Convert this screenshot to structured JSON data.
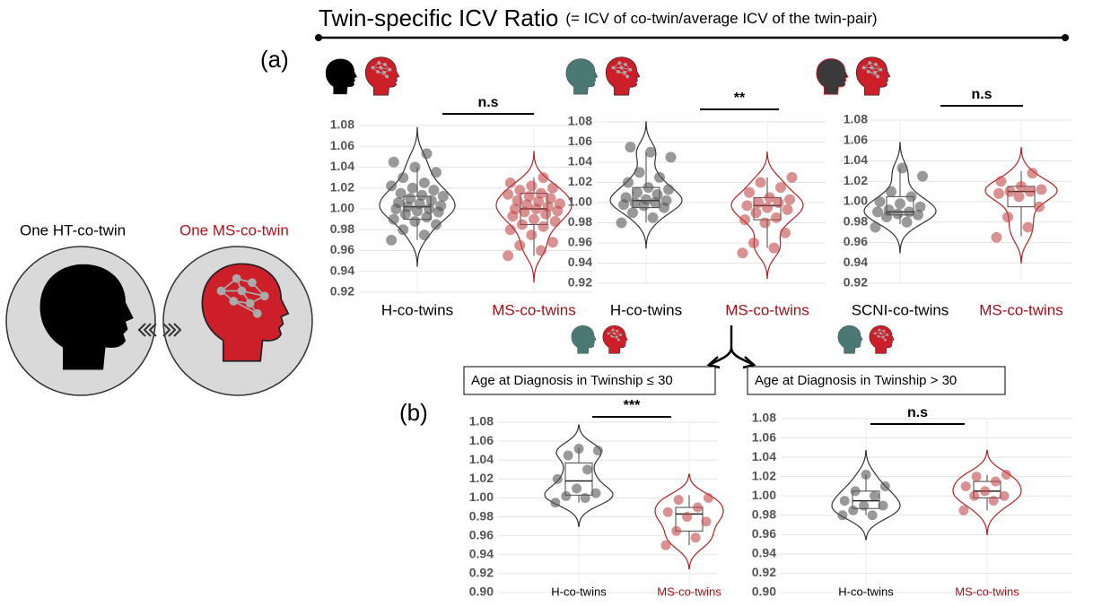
{
  "header": {
    "title": "Twin-specific ICV Ratio",
    "title_note": "(= ICV of co-twin/average ICV of the twin-pair)"
  },
  "left": {
    "healthy_label": "One HT-co-twin",
    "ms_label": "One MS-co-twin"
  },
  "panels": {
    "a": "(a)",
    "b": "(b)",
    "subgroups": [
      "Age at Diagnosis in Twinship ≤ 30",
      "Age at Diagnosis in Twinship > 30"
    ]
  },
  "chart_data": [
    {
      "type": "violin",
      "significance": "n.s",
      "ylim": [
        0.92,
        1.08
      ],
      "yticks": [
        0.92,
        0.94,
        0.96,
        0.98,
        {
          "value": 1,
          "label": "1.00"
        },
        1.02,
        1.04,
        1.06,
        1.08
      ],
      "series": [
        {
          "name": "H-co-twins",
          "color": "#333333",
          "values": [
            0.97,
            0.975,
            0.98,
            0.985,
            0.988,
            0.99,
            0.992,
            0.995,
            0.997,
            0.998,
            1.0,
            1.0,
            1.002,
            1.003,
            1.005,
            1.006,
            1.008,
            1.01,
            1.012,
            1.013,
            1.015,
            1.018,
            1.02,
            1.022,
            1.025,
            1.03,
            1.035,
            1.04,
            1.045,
            1.053
          ],
          "box": {
            "low": 0.97,
            "q1": 0.99,
            "median": 1.002,
            "q3": 1.012,
            "high": 1.04
          }
        },
        {
          "name": "MS-co-twins",
          "color": "#b22222",
          "values": [
            0.955,
            0.96,
            0.965,
            0.968,
            0.975,
            0.98,
            0.983,
            0.985,
            0.988,
            0.99,
            0.993,
            0.995,
            0.997,
            0.998,
            1.0,
            1.0,
            1.002,
            1.004,
            1.005,
            1.007,
            1.008,
            1.01,
            1.012,
            1.014,
            1.015,
            1.018,
            1.02,
            1.022,
            1.025,
            1.03
          ],
          "box": {
            "low": 0.955,
            "q1": 0.985,
            "median": 1.0,
            "q3": 1.015,
            "high": 1.03
          }
        }
      ]
    },
    {
      "type": "violin",
      "significance": "**",
      "ylim": [
        0.92,
        1.08
      ],
      "yticks": [
        0.92,
        0.94,
        0.96,
        0.98,
        {
          "value": 1,
          "label": "1.00"
        },
        1.02,
        1.04,
        1.06,
        1.08
      ],
      "series": [
        {
          "name": "H-co-twins",
          "color": "#333333",
          "values": [
            0.98,
            0.985,
            0.99,
            0.995,
            0.997,
            0.998,
            1.0,
            1.0,
            1.002,
            1.003,
            1.005,
            1.008,
            1.01,
            1.013,
            1.015,
            1.02,
            1.025,
            1.03,
            1.045,
            1.05,
            1.055
          ],
          "box": {
            "low": 0.98,
            "q1": 0.995,
            "median": 1.002,
            "q3": 1.015,
            "high": 1.05
          }
        },
        {
          "name": "MS-co-twins",
          "color": "#b22222",
          "values": [
            0.95,
            0.955,
            0.96,
            0.97,
            0.98,
            0.983,
            0.985,
            0.99,
            0.993,
            0.995,
            0.997,
            1.0,
            1.0,
            1.003,
            1.005,
            1.01,
            1.015,
            1.02,
            1.025
          ],
          "box": {
            "low": 0.955,
            "q1": 0.983,
            "median": 0.997,
            "q3": 1.005,
            "high": 1.025
          }
        }
      ]
    },
    {
      "type": "violin",
      "significance": "n.s",
      "ylim": [
        0.92,
        1.08
      ],
      "yticks": [
        0.92,
        0.94,
        0.96,
        0.98,
        {
          "value": 1,
          "label": "1.00"
        },
        1.02,
        1.04,
        1.06,
        1.08
      ],
      "series": [
        {
          "name": "SCNI-co-twins",
          "color": "#333333",
          "values": [
            0.975,
            0.98,
            0.985,
            0.987,
            0.988,
            0.99,
            0.99,
            0.992,
            0.995,
            0.998,
            1.0,
            1.005,
            1.01,
            1.025,
            1.033
          ],
          "box": {
            "low": 0.978,
            "q1": 0.987,
            "median": 0.99,
            "q3": 1.005,
            "high": 1.033
          }
        },
        {
          "name": "MS-co-twins",
          "color": "#b22222",
          "values": [
            0.965,
            0.975,
            0.985,
            0.995,
            1.005,
            1.008,
            1.01,
            1.01,
            1.012,
            1.015,
            1.02,
            1.028
          ],
          "box": {
            "low": 0.966,
            "q1": 0.995,
            "median": 1.01,
            "q3": 1.015,
            "high": 1.03
          }
        }
      ]
    },
    {
      "type": "violin",
      "significance": "***",
      "ylim": [
        0.9,
        1.08
      ],
      "yticks": [
        {
          "value": 0.9,
          "label": "0.90"
        },
        0.92,
        0.94,
        0.96,
        0.98,
        {
          "value": 1,
          "label": "1.00"
        },
        1.02,
        1.04,
        1.06,
        1.08
      ],
      "series": [
        {
          "name": "H-co-twins",
          "color": "#333333",
          "values": [
            0.995,
            1.0,
            1.002,
            1.005,
            1.01,
            1.02,
            1.03,
            1.045,
            1.05,
            1.052
          ],
          "box": {
            "low": 0.995,
            "q1": 1.003,
            "median": 1.018,
            "q3": 1.037,
            "high": 1.053
          }
        },
        {
          "name": "MS-co-twins",
          "color": "#b22222",
          "values": [
            0.95,
            0.958,
            0.965,
            0.975,
            0.98,
            0.985,
            0.99,
            0.998,
            1.0
          ],
          "box": {
            "low": 0.95,
            "q1": 0.965,
            "median": 0.983,
            "q3": 0.99,
            "high": 1.003
          }
        }
      ]
    },
    {
      "type": "violin",
      "significance": "n.s",
      "ylim": [
        0.9,
        1.08
      ],
      "yticks": [
        {
          "value": 0.9,
          "label": "0.90"
        },
        0.92,
        0.94,
        0.96,
        0.98,
        {
          "value": 1,
          "label": "1.00"
        },
        1.02,
        1.04,
        1.06,
        1.08
      ],
      "series": [
        {
          "name": "H-co-twins",
          "color": "#333333",
          "values": [
            0.98,
            0.98,
            0.985,
            0.99,
            0.99,
            0.995,
            1.0,
            1.005,
            1.01,
            1.022
          ],
          "box": {
            "low": 0.98,
            "q1": 0.987,
            "median": 0.995,
            "q3": 1.005,
            "high": 1.022
          }
        },
        {
          "name": "MS-co-twins",
          "color": "#b22222",
          "values": [
            0.985,
            0.995,
            1.0,
            1.0,
            1.005,
            1.01,
            1.015,
            1.02,
            1.022
          ],
          "box": {
            "low": 0.985,
            "q1": 0.998,
            "median": 1.005,
            "q3": 1.015,
            "high": 1.022
          }
        }
      ]
    }
  ]
}
